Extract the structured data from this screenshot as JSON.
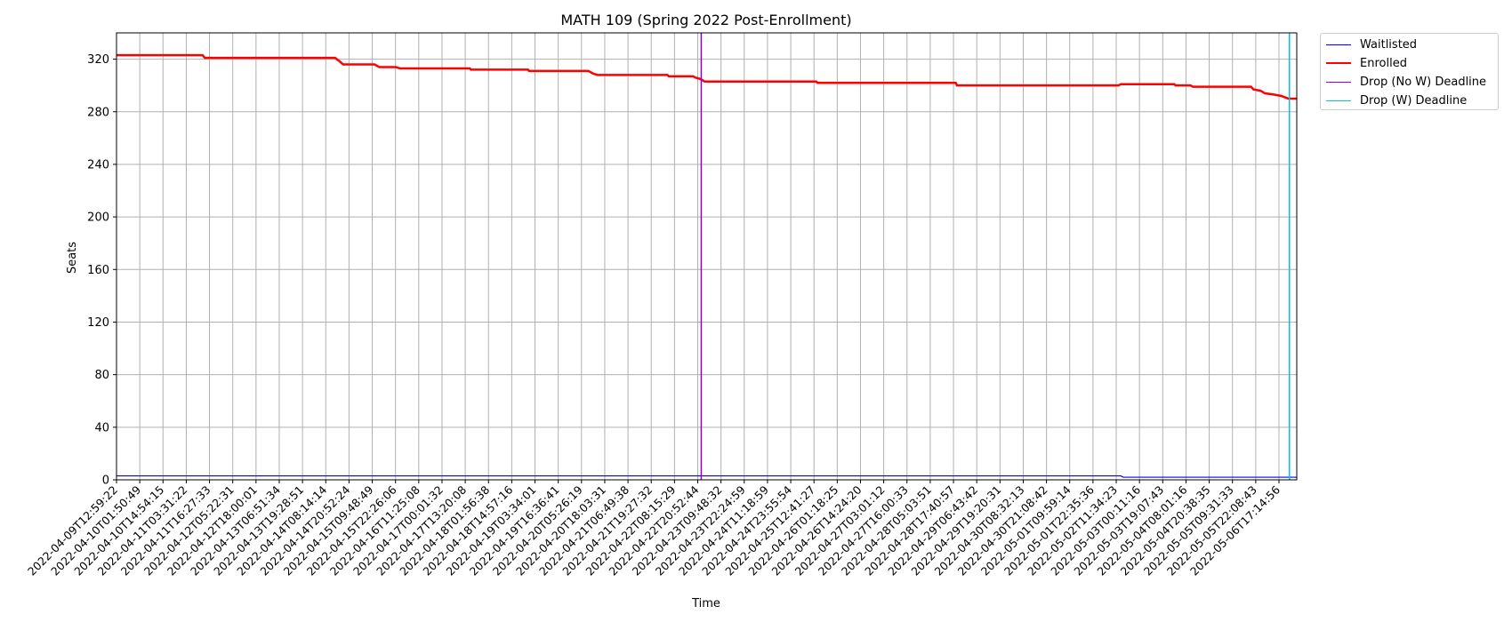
{
  "chart_data": {
    "type": "line",
    "title": "MATH 109 (Spring 2022 Post-Enrollment)",
    "xlabel": "Time",
    "ylabel": "Seats",
    "ylim": [
      0,
      340
    ],
    "y_ticks": [
      0,
      40,
      80,
      120,
      160,
      200,
      240,
      280,
      320
    ],
    "grid": true,
    "legend_position": "outside-top-right",
    "x_tick_labels": [
      "2022-04-09T12:59:22",
      "2022-04-10T01:50:49",
      "2022-04-10T14:54:15",
      "2022-04-11T03:31:22",
      "2022-04-11T16:27:33",
      "2022-04-12T05:22:31",
      "2022-04-12T18:00:01",
      "2022-04-13T06:51:34",
      "2022-04-13T19:28:51",
      "2022-04-14T08:14:14",
      "2022-04-14T20:52:24",
      "2022-04-15T09:48:49",
      "2022-04-15T22:26:06",
      "2022-04-16T11:25:08",
      "2022-04-17T00:01:32",
      "2022-04-17T13:20:08",
      "2022-04-18T01:56:38",
      "2022-04-18T14:57:16",
      "2022-04-19T03:34:01",
      "2022-04-19T16:36:41",
      "2022-04-20T05:26:19",
      "2022-04-20T18:03:31",
      "2022-04-21T06:49:38",
      "2022-04-21T19:27:32",
      "2022-04-22T08:15:29",
      "2022-04-22T20:52:44",
      "2022-04-23T09:48:32",
      "2022-04-23T22:24:59",
      "2022-04-24T11:18:59",
      "2022-04-24T23:55:54",
      "2022-04-25T12:41:27",
      "2022-04-26T01:18:25",
      "2022-04-26T14:24:20",
      "2022-04-27T03:01:12",
      "2022-04-27T16:00:33",
      "2022-04-28T05:03:51",
      "2022-04-28T17:40:57",
      "2022-04-29T06:43:42",
      "2022-04-29T19:20:31",
      "2022-04-30T08:32:13",
      "2022-04-30T21:08:42",
      "2022-05-01T09:59:14",
      "2022-05-01T22:35:36",
      "2022-05-02T11:34:23",
      "2022-05-03T00:11:16",
      "2022-05-03T19:07:43",
      "2022-05-04T08:01:16",
      "2022-05-04T20:38:35",
      "2022-05-05T09:31:33",
      "2022-05-05T22:08:43",
      "2022-05-06T17:14:56"
    ],
    "x_range_ticks": [
      0,
      50.75
    ],
    "series": [
      {
        "name": "Waitlisted",
        "color": "#0000ff",
        "points": [
          [
            0,
            3
          ],
          [
            43.2,
            3
          ],
          [
            43.3,
            2
          ],
          [
            50.75,
            2
          ]
        ]
      },
      {
        "name": "Enrolled",
        "color": "#ff0000",
        "points": [
          [
            0,
            323
          ],
          [
            3.7,
            323
          ],
          [
            3.8,
            321
          ],
          [
            9.4,
            321
          ],
          [
            9.55,
            319
          ],
          [
            9.75,
            316
          ],
          [
            11.1,
            316
          ],
          [
            11.3,
            314
          ],
          [
            12.0,
            314
          ],
          [
            12.2,
            313
          ],
          [
            15.2,
            313
          ],
          [
            15.25,
            312
          ],
          [
            17.7,
            312
          ],
          [
            17.75,
            311
          ],
          [
            20.3,
            311
          ],
          [
            20.5,
            309
          ],
          [
            20.7,
            308
          ],
          [
            23.7,
            308
          ],
          [
            23.75,
            307
          ],
          [
            24.8,
            307
          ],
          [
            24.9,
            306
          ],
          [
            25.1,
            305
          ],
          [
            25.2,
            304
          ],
          [
            25.3,
            303
          ],
          [
            30.1,
            303
          ],
          [
            30.15,
            302
          ],
          [
            36.1,
            302
          ],
          [
            36.15,
            300
          ],
          [
            43.1,
            300
          ],
          [
            43.2,
            301
          ],
          [
            45.5,
            301
          ],
          [
            45.55,
            300
          ],
          [
            46.2,
            300
          ],
          [
            46.3,
            299
          ],
          [
            48.8,
            299
          ],
          [
            48.9,
            297
          ],
          [
            49.2,
            296
          ],
          [
            49.4,
            294
          ],
          [
            49.8,
            293
          ],
          [
            50.1,
            292
          ],
          [
            50.4,
            290
          ],
          [
            50.75,
            290
          ]
        ]
      }
    ],
    "vlines": [
      {
        "name": "Drop (No W) Deadline",
        "color": "#9400d3",
        "x": 25.15
      },
      {
        "name": "Drop (W) Deadline",
        "color": "#00bfff",
        "x": 50.45
      }
    ]
  },
  "legend": [
    {
      "label": "Waitlisted",
      "color": "#0000ff",
      "width": 1.2
    },
    {
      "label": "Enrolled",
      "color": "#ff0000",
      "width": 2.5
    },
    {
      "label": "Drop (No W) Deadline",
      "color": "#9400d3",
      "width": 1.5
    },
    {
      "label": "Drop (W) Deadline",
      "color": "#00bfff",
      "width": 1.5
    }
  ]
}
